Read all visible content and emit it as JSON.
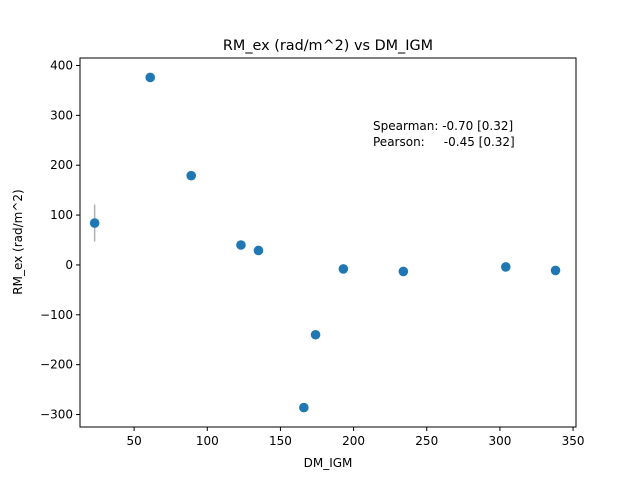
{
  "chart_data": {
    "type": "scatter",
    "title": "RM_ex (rad/m^2) vs DM_IGM",
    "xlabel": "DM_IGM",
    "ylabel": "RM_ex (rad/m^2)",
    "xlim": [
      13,
      352
    ],
    "ylim": [
      -325,
      415
    ],
    "xticks": [
      50,
      100,
      150,
      200,
      250,
      300,
      350
    ],
    "yticks": [
      -300,
      -200,
      -100,
      0,
      100,
      200,
      300,
      400
    ],
    "xtick_labels": [
      "50",
      "100",
      "150",
      "200",
      "250",
      "300",
      "350"
    ],
    "ytick_labels": [
      "−300",
      "−200",
      "−100",
      "0",
      "100",
      "200",
      "300",
      "400"
    ],
    "grid": false,
    "marker_color": "#1f77b4",
    "errorbar_color": "#b0b0b0",
    "points": [
      {
        "x": 23,
        "y": 84,
        "yerr": 37
      },
      {
        "x": 61,
        "y": 376,
        "yerr": 8
      },
      {
        "x": 89,
        "y": 179,
        "yerr": 3
      },
      {
        "x": 123,
        "y": 40,
        "yerr": 3
      },
      {
        "x": 135,
        "y": 29,
        "yerr": 3
      },
      {
        "x": 166,
        "y": -286,
        "yerr": 3
      },
      {
        "x": 174,
        "y": -140,
        "yerr": 3
      },
      {
        "x": 193,
        "y": -8,
        "yerr": 3
      },
      {
        "x": 234,
        "y": -13,
        "yerr": 3
      },
      {
        "x": 304,
        "y": -4,
        "yerr": 3
      },
      {
        "x": 338,
        "y": -11,
        "yerr": 3
      }
    ],
    "annotations": [
      "Spearman: -0.70 [0.32]",
      "Pearson:     -0.45 [0.32]"
    ]
  }
}
